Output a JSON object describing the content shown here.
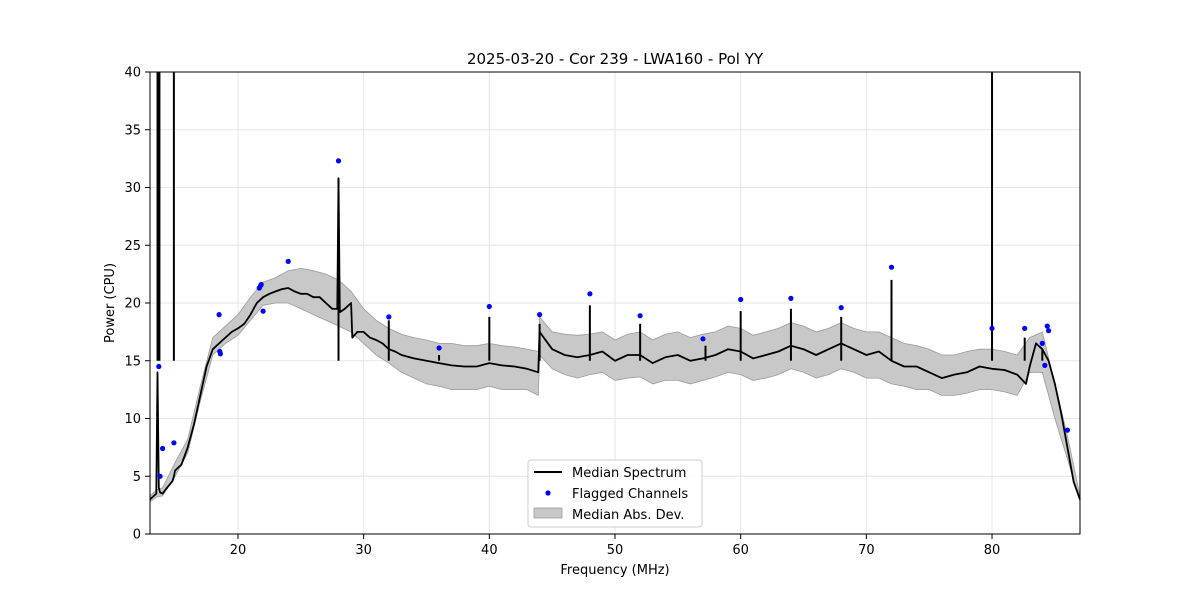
{
  "chart_data": {
    "type": "line",
    "title": "2025-03-20 - Cor 239 - LWA160 - Pol YY",
    "xlabel": "Frequency (MHz)",
    "ylabel": "Power (CPU)",
    "xlim": [
      13.0,
      87.0
    ],
    "ylim": [
      0,
      40
    ],
    "xticks": [
      20,
      30,
      40,
      50,
      60,
      70,
      80
    ],
    "yticks": [
      0,
      5,
      10,
      15,
      20,
      25,
      30,
      35,
      40
    ],
    "grid": true,
    "legend_position": "lower-center",
    "colors": {
      "median": "#000000",
      "flagged": "#0000ff",
      "mad_band": "#c8c8c8",
      "mad_edge": "#9a9a9a",
      "grid": "#e6e6e6"
    },
    "series": [
      {
        "name": "Median Spectrum",
        "kind": "line",
        "x": [
          13.0,
          13.5,
          13.6,
          13.7,
          13.8,
          14.0,
          14.2,
          14.5,
          14.8,
          14.9,
          15.0,
          15.5,
          16.0,
          16.5,
          17.0,
          17.5,
          18.0,
          18.5,
          19.0,
          19.5,
          20.0,
          20.5,
          21.0,
          21.5,
          22.0,
          22.5,
          23.0,
          23.5,
          24.0,
          24.5,
          25.0,
          25.5,
          26.0,
          26.5,
          27.0,
          27.5,
          27.9,
          28.0,
          28.1,
          28.5,
          29.0,
          29.1,
          29.5,
          30.0,
          30.5,
          31.0,
          31.5,
          32.0,
          32.5,
          33.0,
          34.0,
          35.0,
          36.0,
          37.0,
          38.0,
          39.0,
          40.0,
          41.0,
          42.0,
          43.0,
          43.9,
          44.0,
          45.0,
          46.0,
          47.0,
          48.0,
          49.0,
          50.0,
          51.0,
          52.0,
          53.0,
          54.0,
          55.0,
          56.0,
          57.0,
          58.0,
          59.0,
          60.0,
          61.0,
          62.0,
          63.0,
          64.0,
          65.0,
          66.0,
          67.0,
          68.0,
          69.0,
          70.0,
          71.0,
          72.0,
          73.0,
          74.0,
          75.0,
          76.0,
          77.0,
          78.0,
          79.0,
          80.0,
          81.0,
          82.0,
          82.7,
          83.0,
          83.5,
          84.0,
          84.5,
          85.0,
          85.5,
          86.0,
          86.5,
          87.0
        ],
        "y": [
          3.0,
          3.5,
          14.0,
          4.0,
          3.6,
          3.5,
          3.8,
          4.2,
          4.6,
          5.0,
          5.5,
          6.0,
          7.5,
          9.5,
          12.0,
          14.5,
          16.0,
          16.5,
          17.0,
          17.5,
          17.8,
          18.2,
          19.0,
          20.0,
          20.5,
          20.8,
          21.0,
          21.2,
          21.3,
          21.0,
          20.8,
          20.8,
          20.5,
          20.5,
          20.0,
          19.5,
          19.5,
          30.8,
          19.2,
          19.5,
          20.0,
          17.0,
          17.5,
          17.5,
          17.0,
          16.8,
          16.5,
          16.0,
          15.8,
          15.5,
          15.2,
          15.0,
          14.8,
          14.6,
          14.5,
          14.5,
          14.8,
          14.6,
          14.5,
          14.3,
          14.0,
          17.5,
          16.0,
          15.5,
          15.3,
          15.5,
          15.8,
          15.0,
          15.5,
          15.5,
          14.8,
          15.3,
          15.5,
          15.0,
          15.2,
          15.5,
          16.0,
          15.8,
          15.2,
          15.5,
          15.8,
          16.3,
          16.0,
          15.5,
          16.0,
          16.5,
          16.0,
          15.5,
          15.8,
          15.0,
          14.5,
          14.5,
          14.0,
          13.5,
          13.8,
          14.0,
          14.5,
          14.3,
          14.2,
          13.8,
          13.0,
          14.5,
          16.5,
          16.0,
          15.0,
          13.0,
          10.5,
          7.5,
          4.5,
          3.0
        ]
      },
      {
        "name": "Median Abs. Dev.",
        "kind": "band",
        "x": [
          13.0,
          13.5,
          14.0,
          15.0,
          16.0,
          17.0,
          18.0,
          19.0,
          20.0,
          21.0,
          22.0,
          23.0,
          24.0,
          25.0,
          26.0,
          27.0,
          28.0,
          29.0,
          30.0,
          31.0,
          32.0,
          33.0,
          34.0,
          35.0,
          36.0,
          37.0,
          38.0,
          39.0,
          40.0,
          41.0,
          42.0,
          43.0,
          43.9,
          44.0,
          45.0,
          46.0,
          47.0,
          48.0,
          49.0,
          50.0,
          51.0,
          52.0,
          53.0,
          54.0,
          55.0,
          56.0,
          57.0,
          58.0,
          59.0,
          60.0,
          61.0,
          62.0,
          63.0,
          64.0,
          65.0,
          66.0,
          67.0,
          68.0,
          69.0,
          70.0,
          71.0,
          72.0,
          73.0,
          74.0,
          75.0,
          76.0,
          77.0,
          78.0,
          79.0,
          80.0,
          81.0,
          82.0,
          83.0,
          84.0,
          85.0,
          86.0,
          87.0
        ],
        "lower": [
          2.8,
          3.2,
          3.3,
          5.0,
          7.0,
          11.5,
          15.5,
          16.5,
          17.2,
          18.5,
          19.8,
          20.0,
          20.0,
          19.5,
          19.0,
          18.5,
          18.0,
          17.5,
          16.5,
          15.5,
          14.8,
          14.0,
          13.5,
          13.0,
          12.8,
          12.5,
          12.5,
          12.5,
          12.8,
          12.5,
          12.5,
          12.5,
          12.0,
          15.5,
          14.3,
          13.8,
          13.5,
          13.8,
          14.0,
          13.3,
          13.5,
          13.6,
          13.0,
          13.3,
          13.3,
          13.0,
          13.3,
          13.6,
          14.0,
          13.8,
          13.3,
          13.5,
          13.8,
          14.3,
          14.0,
          13.5,
          13.8,
          14.3,
          14.0,
          13.5,
          13.5,
          13.0,
          12.8,
          12.5,
          12.5,
          12.0,
          12.0,
          12.2,
          12.5,
          12.5,
          12.3,
          12.0,
          14.0,
          14.0,
          10.0,
          6.5,
          2.8
        ],
        "upper": [
          3.3,
          3.8,
          4.0,
          6.2,
          8.2,
          12.8,
          17.0,
          18.0,
          19.0,
          20.5,
          21.8,
          22.2,
          22.8,
          23.0,
          22.8,
          22.5,
          22.0,
          21.0,
          19.5,
          18.5,
          17.8,
          17.3,
          17.0,
          16.8,
          16.5,
          16.5,
          16.3,
          16.3,
          16.5,
          16.3,
          16.2,
          16.0,
          15.8,
          18.8,
          17.5,
          17.3,
          17.2,
          17.3,
          17.5,
          16.8,
          17.3,
          17.5,
          16.8,
          17.3,
          17.5,
          17.0,
          17.3,
          17.5,
          18.0,
          17.8,
          17.2,
          17.5,
          17.8,
          18.3,
          18.0,
          17.5,
          17.8,
          18.3,
          17.8,
          17.5,
          17.5,
          17.0,
          16.5,
          16.3,
          16.0,
          15.5,
          15.5,
          15.8,
          16.0,
          16.0,
          15.8,
          15.5,
          17.0,
          17.5,
          13.0,
          8.5,
          3.3
        ]
      }
    ],
    "spikes": [
      {
        "x": 13.6,
        "y": 40
      },
      {
        "x": 13.75,
        "y": 40
      },
      {
        "x": 14.9,
        "y": 40
      },
      {
        "x": 28.0,
        "y": 30.8
      },
      {
        "x": 32.0,
        "y": 18.5
      },
      {
        "x": 36.0,
        "y": 15.5
      },
      {
        "x": 40.0,
        "y": 18.8
      },
      {
        "x": 44.0,
        "y": 18.2
      },
      {
        "x": 48.0,
        "y": 19.8
      },
      {
        "x": 52.0,
        "y": 18.2
      },
      {
        "x": 57.2,
        "y": 16.3
      },
      {
        "x": 60.0,
        "y": 19.3
      },
      {
        "x": 64.0,
        "y": 19.5
      },
      {
        "x": 68.0,
        "y": 18.8
      },
      {
        "x": 72.0,
        "y": 22.0
      },
      {
        "x": 80.0,
        "y": 40
      },
      {
        "x": 82.6,
        "y": 17.0
      },
      {
        "x": 84.0,
        "y": 16.0
      }
    ],
    "flagged": {
      "name": "Flagged Channels",
      "x": [
        13.7,
        13.8,
        14.0,
        14.9,
        18.5,
        18.55,
        18.6,
        21.7,
        21.8,
        21.85,
        22.0,
        24.0,
        28.0,
        32.0,
        36.0,
        40.0,
        44.0,
        48.0,
        52.0,
        57.0,
        60.0,
        64.0,
        68.0,
        72.0,
        80.0,
        82.6,
        84.0,
        84.2,
        84.4,
        84.5,
        86.0
      ],
      "y": [
        14.5,
        5.0,
        7.4,
        7.9,
        19.0,
        15.8,
        15.6,
        21.3,
        21.5,
        21.6,
        19.3,
        23.6,
        32.3,
        18.8,
        16.1,
        19.7,
        19.0,
        20.8,
        18.9,
        16.9,
        20.3,
        20.4,
        19.6,
        23.1,
        17.8,
        17.8,
        16.5,
        14.6,
        18.0,
        17.6,
        9.0
      ]
    },
    "legend": [
      {
        "label": "Median Spectrum",
        "kind": "line"
      },
      {
        "label": "Flagged Channels",
        "kind": "marker"
      },
      {
        "label": "Median Abs. Dev.",
        "kind": "patch"
      }
    ]
  }
}
